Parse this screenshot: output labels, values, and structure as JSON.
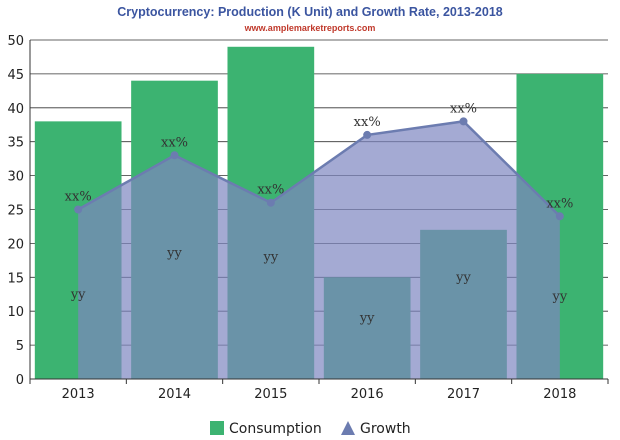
{
  "chart_data": {
    "type": "bar",
    "title": "Cryptocurrency: Production (K Unit) and Growth Rate, 2013-2018",
    "subtitle": "www.amplemarketreports.com",
    "categories": [
      "2013",
      "2014",
      "2015",
      "2016",
      "2017",
      "2018"
    ],
    "ylim": [
      0,
      50
    ],
    "yticks": [
      0,
      5,
      10,
      15,
      20,
      25,
      30,
      35,
      40,
      45,
      50
    ],
    "grid": true,
    "legend_position": "bottom",
    "series": [
      {
        "name": "Consumption",
        "type": "bar",
        "color": "#3cb371",
        "values": [
          38,
          44,
          49,
          15,
          22,
          45
        ],
        "data_labels": [
          "yy",
          "yy",
          "yy",
          "yy",
          "yy",
          "yy"
        ]
      },
      {
        "name": "Growth",
        "type": "area",
        "color": "#7d86c0",
        "line_color": "#6c7cb0",
        "values": [
          25,
          33,
          26,
          36,
          38,
          24
        ],
        "data_labels": [
          "xx%",
          "xx%",
          "xx%",
          "xx%",
          "xx%",
          "xx%"
        ]
      }
    ]
  }
}
